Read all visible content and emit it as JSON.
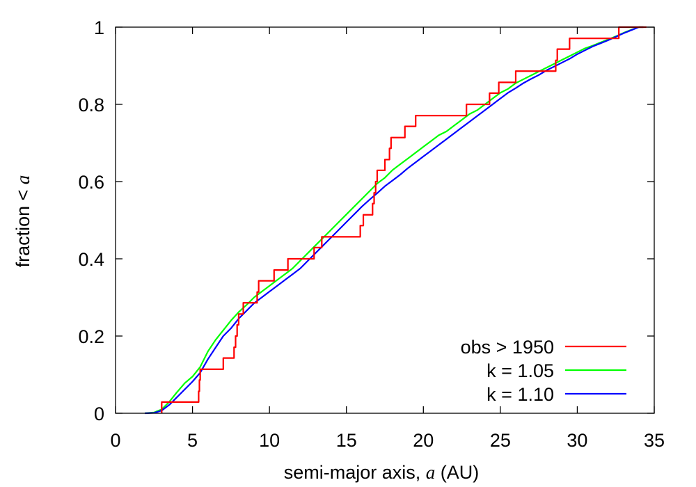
{
  "chart_data": {
    "type": "line",
    "title": "",
    "xlabel_prefix": "semi-major axis, ",
    "xlabel_var": "a",
    "xlabel_suffix": " (AU)",
    "ylabel_prefix": "fraction < ",
    "ylabel_var": "a",
    "xlim": [
      0,
      35
    ],
    "ylim": [
      0,
      1
    ],
    "xticks": [
      0,
      5,
      10,
      15,
      20,
      25,
      30,
      35
    ],
    "yticks": [
      0,
      0.2,
      0.4,
      0.6,
      0.8,
      1
    ],
    "xtick_labels": [
      "0",
      "5",
      "10",
      "15",
      "20",
      "25",
      "30",
      "35"
    ],
    "ytick_labels": [
      "0",
      "0.2",
      "0.4",
      "0.6",
      "0.8",
      "1"
    ],
    "grid": false,
    "legend_position": "bottom-right",
    "series": [
      {
        "name": "obs > 1950",
        "color": "#ff0000",
        "step": true,
        "points": [
          [
            3.0,
            0.0
          ],
          [
            3.0,
            0.029
          ],
          [
            5.4,
            0.029
          ],
          [
            5.4,
            0.057
          ],
          [
            5.45,
            0.057
          ],
          [
            5.45,
            0.086
          ],
          [
            5.5,
            0.086
          ],
          [
            5.5,
            0.114
          ],
          [
            7.0,
            0.114
          ],
          [
            7.0,
            0.143
          ],
          [
            7.7,
            0.143
          ],
          [
            7.7,
            0.171
          ],
          [
            7.8,
            0.171
          ],
          [
            7.8,
            0.2
          ],
          [
            7.9,
            0.2
          ],
          [
            7.9,
            0.229
          ],
          [
            8.0,
            0.229
          ],
          [
            8.0,
            0.257
          ],
          [
            8.3,
            0.257
          ],
          [
            8.3,
            0.286
          ],
          [
            9.2,
            0.286
          ],
          [
            9.2,
            0.314
          ],
          [
            9.3,
            0.314
          ],
          [
            9.3,
            0.343
          ],
          [
            10.3,
            0.343
          ],
          [
            10.3,
            0.371
          ],
          [
            11.2,
            0.371
          ],
          [
            11.2,
            0.4
          ],
          [
            12.9,
            0.4
          ],
          [
            12.9,
            0.429
          ],
          [
            13.4,
            0.429
          ],
          [
            13.4,
            0.457
          ],
          [
            15.9,
            0.457
          ],
          [
            15.9,
            0.486
          ],
          [
            16.1,
            0.486
          ],
          [
            16.1,
            0.514
          ],
          [
            16.7,
            0.514
          ],
          [
            16.7,
            0.543
          ],
          [
            16.8,
            0.543
          ],
          [
            16.8,
            0.571
          ],
          [
            16.9,
            0.571
          ],
          [
            16.9,
            0.6
          ],
          [
            17.0,
            0.6
          ],
          [
            17.0,
            0.629
          ],
          [
            17.5,
            0.629
          ],
          [
            17.5,
            0.657
          ],
          [
            17.8,
            0.657
          ],
          [
            17.8,
            0.686
          ],
          [
            17.9,
            0.686
          ],
          [
            17.9,
            0.714
          ],
          [
            18.8,
            0.714
          ],
          [
            18.8,
            0.743
          ],
          [
            19.5,
            0.743
          ],
          [
            19.5,
            0.771
          ],
          [
            22.8,
            0.771
          ],
          [
            22.8,
            0.8
          ],
          [
            24.3,
            0.8
          ],
          [
            24.3,
            0.829
          ],
          [
            24.9,
            0.829
          ],
          [
            24.9,
            0.857
          ],
          [
            26.0,
            0.857
          ],
          [
            26.0,
            0.886
          ],
          [
            28.6,
            0.886
          ],
          [
            28.6,
            0.914
          ],
          [
            28.7,
            0.914
          ],
          [
            28.7,
            0.943
          ],
          [
            29.5,
            0.943
          ],
          [
            29.5,
            0.971
          ],
          [
            32.7,
            0.971
          ],
          [
            32.7,
            1.0
          ],
          [
            34.5,
            1.0
          ]
        ]
      },
      {
        "name": "k = 1.05",
        "color": "#00ff00",
        "step": false,
        "points": [
          [
            1.9,
            0.0
          ],
          [
            2.5,
            0.002
          ],
          [
            3.0,
            0.01
          ],
          [
            3.5,
            0.03
          ],
          [
            4.0,
            0.055
          ],
          [
            4.5,
            0.078
          ],
          [
            5.0,
            0.095
          ],
          [
            5.5,
            0.12
          ],
          [
            6.0,
            0.16
          ],
          [
            6.5,
            0.19
          ],
          [
            7.0,
            0.215
          ],
          [
            7.5,
            0.24
          ],
          [
            8.0,
            0.262
          ],
          [
            8.5,
            0.28
          ],
          [
            9.0,
            0.3
          ],
          [
            9.5,
            0.315
          ],
          [
            10.0,
            0.33
          ],
          [
            10.5,
            0.345
          ],
          [
            11.0,
            0.36
          ],
          [
            11.5,
            0.375
          ],
          [
            12.0,
            0.395
          ],
          [
            12.5,
            0.415
          ],
          [
            13.0,
            0.435
          ],
          [
            13.5,
            0.455
          ],
          [
            14.0,
            0.475
          ],
          [
            14.5,
            0.495
          ],
          [
            15.0,
            0.515
          ],
          [
            15.5,
            0.535
          ],
          [
            16.0,
            0.555
          ],
          [
            16.5,
            0.575
          ],
          [
            17.0,
            0.595
          ],
          [
            17.5,
            0.61
          ],
          [
            18.0,
            0.63
          ],
          [
            18.5,
            0.645
          ],
          [
            19.0,
            0.66
          ],
          [
            19.5,
            0.675
          ],
          [
            20.0,
            0.69
          ],
          [
            20.5,
            0.705
          ],
          [
            21.0,
            0.72
          ],
          [
            21.5,
            0.73
          ],
          [
            22.0,
            0.745
          ],
          [
            22.5,
            0.76
          ],
          [
            23.0,
            0.775
          ],
          [
            23.5,
            0.785
          ],
          [
            24.0,
            0.8
          ],
          [
            24.5,
            0.815
          ],
          [
            25.0,
            0.83
          ],
          [
            25.5,
            0.84
          ],
          [
            26.0,
            0.855
          ],
          [
            26.5,
            0.865
          ],
          [
            27.0,
            0.875
          ],
          [
            27.5,
            0.885
          ],
          [
            28.0,
            0.895
          ],
          [
            28.5,
            0.905
          ],
          [
            29.0,
            0.915
          ],
          [
            29.5,
            0.925
          ],
          [
            30.0,
            0.935
          ],
          [
            30.5,
            0.945
          ],
          [
            31.0,
            0.952
          ],
          [
            31.5,
            0.96
          ],
          [
            32.0,
            0.968
          ],
          [
            32.5,
            0.976
          ],
          [
            33.0,
            0.985
          ],
          [
            33.5,
            0.993
          ],
          [
            34.0,
            1.0
          ],
          [
            34.3,
            1.0
          ]
        ]
      },
      {
        "name": "k = 1.10",
        "color": "#0000ff",
        "step": false,
        "points": [
          [
            1.9,
            0.0
          ],
          [
            2.5,
            0.001
          ],
          [
            3.0,
            0.007
          ],
          [
            3.5,
            0.022
          ],
          [
            4.0,
            0.042
          ],
          [
            4.5,
            0.062
          ],
          [
            5.0,
            0.082
          ],
          [
            5.5,
            0.105
          ],
          [
            6.0,
            0.14
          ],
          [
            6.5,
            0.17
          ],
          [
            7.0,
            0.2
          ],
          [
            7.5,
            0.22
          ],
          [
            8.0,
            0.245
          ],
          [
            8.5,
            0.265
          ],
          [
            9.0,
            0.285
          ],
          [
            9.5,
            0.3
          ],
          [
            10.0,
            0.315
          ],
          [
            10.5,
            0.33
          ],
          [
            11.0,
            0.345
          ],
          [
            11.5,
            0.36
          ],
          [
            12.0,
            0.375
          ],
          [
            12.5,
            0.395
          ],
          [
            13.0,
            0.415
          ],
          [
            13.5,
            0.435
          ],
          [
            14.0,
            0.455
          ],
          [
            14.5,
            0.475
          ],
          [
            15.0,
            0.495
          ],
          [
            15.5,
            0.515
          ],
          [
            16.0,
            0.535
          ],
          [
            16.5,
            0.553
          ],
          [
            17.0,
            0.57
          ],
          [
            17.5,
            0.588
          ],
          [
            18.0,
            0.603
          ],
          [
            18.5,
            0.618
          ],
          [
            19.0,
            0.635
          ],
          [
            19.5,
            0.65
          ],
          [
            20.0,
            0.665
          ],
          [
            20.5,
            0.68
          ],
          [
            21.0,
            0.695
          ],
          [
            21.5,
            0.71
          ],
          [
            22.0,
            0.725
          ],
          [
            22.5,
            0.74
          ],
          [
            23.0,
            0.755
          ],
          [
            23.5,
            0.77
          ],
          [
            24.0,
            0.785
          ],
          [
            24.5,
            0.8
          ],
          [
            25.0,
            0.815
          ],
          [
            25.5,
            0.83
          ],
          [
            26.0,
            0.842
          ],
          [
            26.5,
            0.855
          ],
          [
            27.0,
            0.866
          ],
          [
            27.5,
            0.876
          ],
          [
            28.0,
            0.888
          ],
          [
            28.5,
            0.898
          ],
          [
            29.0,
            0.908
          ],
          [
            29.5,
            0.918
          ],
          [
            30.0,
            0.93
          ],
          [
            30.5,
            0.94
          ],
          [
            31.0,
            0.95
          ],
          [
            31.5,
            0.958
          ],
          [
            32.0,
            0.966
          ],
          [
            32.5,
            0.975
          ],
          [
            33.0,
            0.984
          ],
          [
            33.5,
            0.992
          ],
          [
            34.0,
            1.0
          ],
          [
            34.3,
            1.0
          ]
        ]
      }
    ]
  }
}
